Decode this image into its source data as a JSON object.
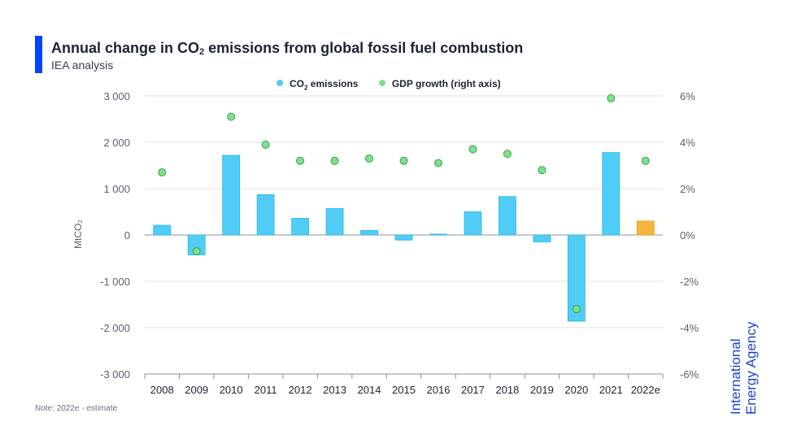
{
  "header": {
    "title_main": "Annual change in CO",
    "title_sub": "2",
    "title_rest": " emissions from global fossil fuel combustion",
    "subtitle": "IEA analysis"
  },
  "legend": {
    "co2_label_main": "CO",
    "co2_label_sub": "2",
    "co2_label_rest": " emissions",
    "gdp_label": "GDP growth (right axis)"
  },
  "colors": {
    "accent": "#0044ff",
    "bar": "#4fcdf6",
    "bar_stroke": "#2fb3e2",
    "bar_estimate": "#f7b33d",
    "bar_estimate_stroke": "#e39b1f",
    "dot": "#7ee08f",
    "dot_stroke": "#3aa04c",
    "grid": "#e2e2e2",
    "logo": "#1c3fd6"
  },
  "chart_data": {
    "type": "bar",
    "categories": [
      "2008",
      "2009",
      "2010",
      "2011",
      "2012",
      "2013",
      "2014",
      "2015",
      "2016",
      "2017",
      "2018",
      "2019",
      "2020",
      "2021",
      "2022e"
    ],
    "series": [
      {
        "name": "CO₂ emissions",
        "axis": "left",
        "type": "bar",
        "values": [
          210,
          -430,
          1720,
          870,
          360,
          570,
          100,
          -110,
          20,
          500,
          830,
          -150,
          -1860,
          1780,
          300
        ]
      },
      {
        "name": "GDP growth (right axis)",
        "axis": "right",
        "type": "scatter",
        "values": [
          2.7,
          -0.7,
          5.1,
          3.9,
          3.2,
          3.2,
          3.3,
          3.2,
          3.1,
          3.7,
          3.5,
          2.8,
          -3.2,
          5.9,
          3.2
        ]
      }
    ],
    "estimate_category": "2022e",
    "ylabel": "MtCO₂",
    "ylim": [
      -3000,
      3000
    ],
    "yticks": [
      3000,
      2000,
      1000,
      0,
      -1000,
      -2000,
      -3000
    ],
    "ytick_labels": [
      "3 000",
      "2 000",
      "1 000",
      "0",
      "-1 000",
      "-2 000",
      "-3 000"
    ],
    "y2lim": [
      -6,
      6
    ],
    "y2ticks": [
      6,
      4,
      2,
      0,
      -2,
      -4,
      -6
    ],
    "y2tick_labels": [
      "6%",
      "4%",
      "2%",
      "0%",
      "-2%",
      "-4%",
      "-6%"
    ],
    "grid": true,
    "legend_position": "top"
  },
  "footer": {
    "note": "Note: 2022e - estimate",
    "logo_text": "International\nEnergy Agency"
  }
}
